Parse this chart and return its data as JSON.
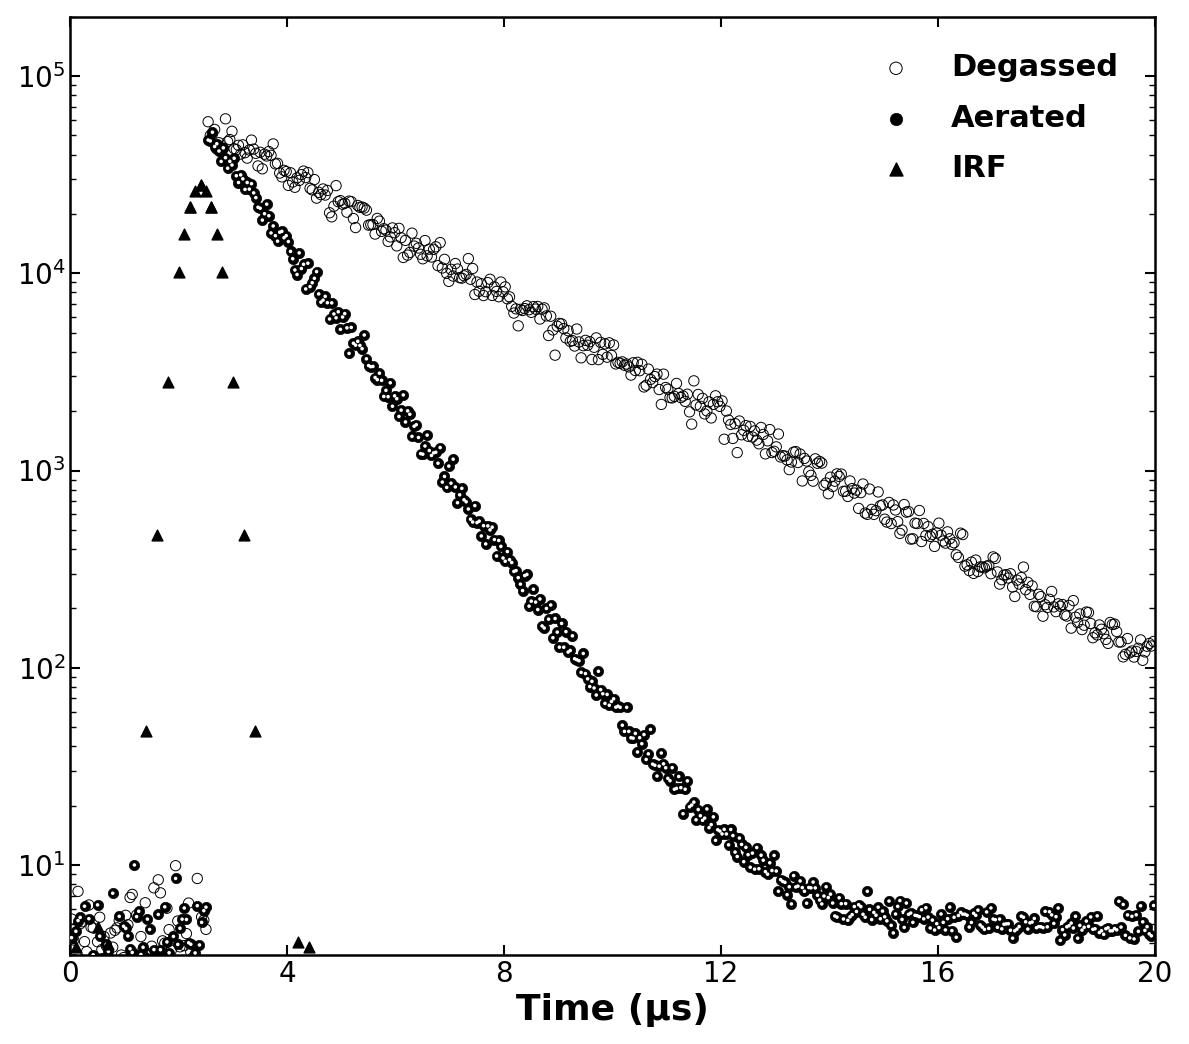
{
  "xlabel": "Time (μs)",
  "xlim": [
    0,
    20
  ],
  "ylim": [
    3.5,
    200000.0
  ],
  "xticks": [
    0,
    4,
    8,
    12,
    16,
    20
  ],
  "legend_labels": [
    "Degassed",
    "Aerated",
    "IRF"
  ],
  "background_color": "#ffffff",
  "xlabel_fontsize": 26,
  "tick_fontsize": 20,
  "legend_fontsize": 22,
  "noise_floor": 5.0,
  "peak_time": 2.5,
  "peak_degassed": 55000,
  "peak_aerated": 55000,
  "peak_irf": 28000,
  "tau_degassed": 2.8,
  "tau_aerated": 1.1,
  "seed": 12345,
  "n_points_dense": 500,
  "marker_size": 55
}
